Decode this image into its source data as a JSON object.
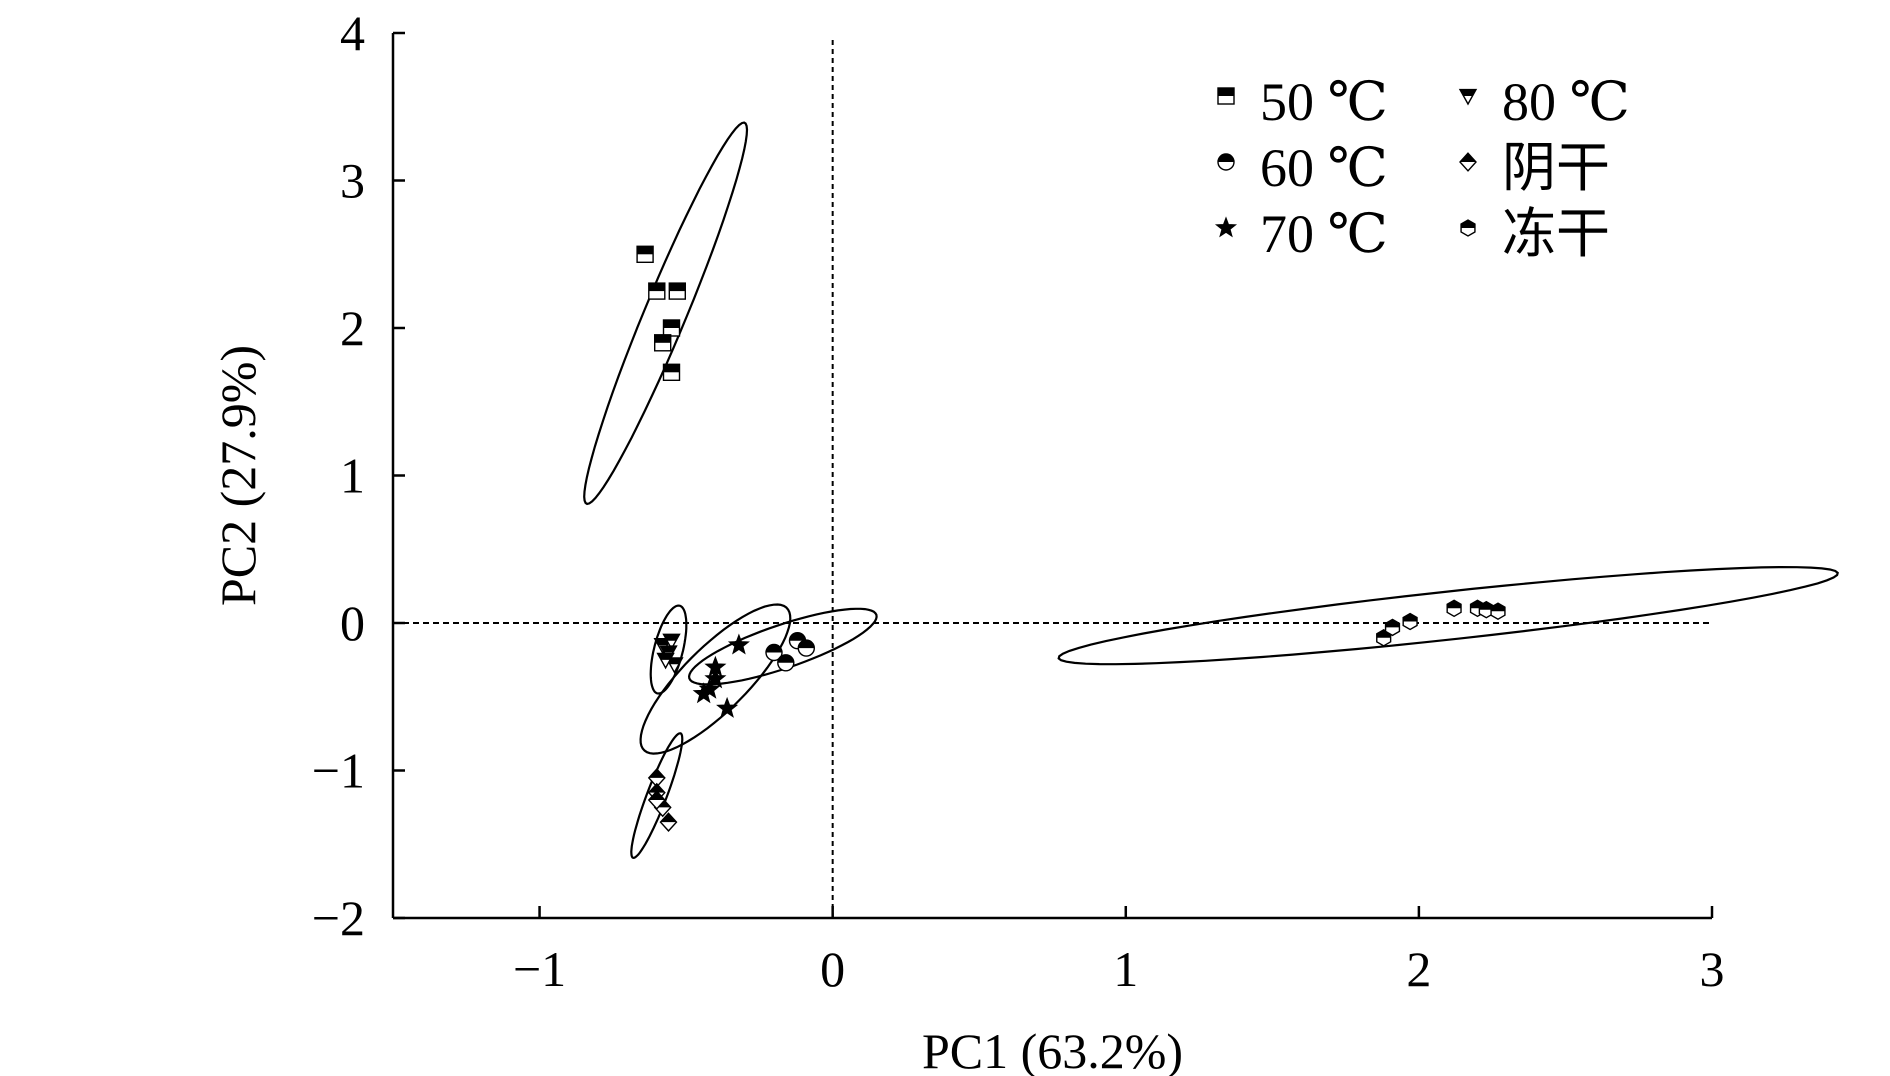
{
  "chart_data": {
    "type": "scatter",
    "title": "",
    "xlabel": "PC1 (63.2%)",
    "ylabel": "PC2 (27.9%)",
    "xlim": [
      -1.5,
      3
    ],
    "ylim": [
      -2,
      4
    ],
    "xticks": [
      -1,
      0,
      1,
      2,
      3
    ],
    "yticks": [
      -2,
      -1,
      0,
      1,
      2,
      3,
      4
    ],
    "xtick_labels": [
      "−1",
      "0",
      "1",
      "2",
      "3"
    ],
    "ytick_labels": [
      "−2",
      "−1",
      "0",
      "1",
      "2",
      "3",
      "4"
    ],
    "grid": false,
    "reference_lines": {
      "x": 0,
      "y": 0,
      "style": "dashed"
    },
    "legend_position": "top-right",
    "series": [
      {
        "name": "50 ℃",
        "marker": "square-half",
        "points": [
          [
            -0.64,
            2.5
          ],
          [
            -0.6,
            2.25
          ],
          [
            -0.53,
            2.25
          ],
          [
            -0.55,
            2.0
          ],
          [
            -0.58,
            1.9
          ],
          [
            -0.55,
            1.7
          ]
        ],
        "ellipse": {
          "center": [
            -0.57,
            2.1
          ],
          "semi_major": 1.32,
          "semi_minor": 0.075,
          "angle_deg": 78.3
        }
      },
      {
        "name": "60 ℃",
        "marker": "circle-half",
        "points": [
          [
            -0.2,
            -0.2
          ],
          [
            -0.16,
            -0.27
          ],
          [
            -0.12,
            -0.12
          ],
          [
            -0.09,
            -0.17
          ]
        ],
        "ellipse": {
          "center": [
            -0.17,
            -0.16
          ],
          "semi_major": 0.39,
          "semi_minor": 0.127,
          "angle_deg": 37.2
        }
      },
      {
        "name": "70 ℃",
        "marker": "star",
        "points": [
          [
            -0.32,
            -0.15
          ],
          [
            -0.4,
            -0.3
          ],
          [
            -0.4,
            -0.38
          ],
          [
            -0.42,
            -0.45
          ],
          [
            -0.36,
            -0.58
          ],
          [
            -0.44,
            -0.48
          ]
        ],
        "ellipse": {
          "center": [
            -0.4,
            -0.38
          ],
          "semi_major": 0.55,
          "semi_minor": 0.135,
          "angle_deg": 66.0
        }
      },
      {
        "name": "80 ℃",
        "marker": "triangle-down-half",
        "points": [
          [
            -0.58,
            -0.15
          ],
          [
            -0.55,
            -0.12
          ],
          [
            -0.56,
            -0.2
          ],
          [
            -0.54,
            -0.28
          ],
          [
            -0.57,
            -0.25
          ]
        ],
        "ellipse": {
          "center": [
            -0.56,
            -0.18
          ],
          "semi_major": 0.3,
          "semi_minor": 0.05,
          "angle_deg": 83.3
        }
      },
      {
        "name": "阴干",
        "marker": "diamond-half",
        "points": [
          [
            -0.6,
            -1.05
          ],
          [
            -0.6,
            -1.15
          ],
          [
            -0.58,
            -1.25
          ],
          [
            -0.56,
            -1.35
          ],
          [
            -0.6,
            -1.2
          ]
        ],
        "ellipse": {
          "center": [
            -0.6,
            -1.17
          ],
          "semi_major": 0.43,
          "semi_minor": 0.035,
          "angle_deg": 79.3
        }
      },
      {
        "name": "冻干",
        "marker": "hexagon-half",
        "points": [
          [
            1.88,
            -0.1
          ],
          [
            1.91,
            -0.03
          ],
          [
            1.97,
            0.01
          ],
          [
            2.12,
            0.1
          ],
          [
            2.2,
            0.1
          ],
          [
            2.23,
            0.09
          ],
          [
            2.27,
            0.08
          ]
        ],
        "ellipse": {
          "center": [
            2.1,
            0.05
          ],
          "semi_major": 1.36,
          "semi_minor": 0.16,
          "angle_deg": 12.3
        }
      }
    ]
  }
}
